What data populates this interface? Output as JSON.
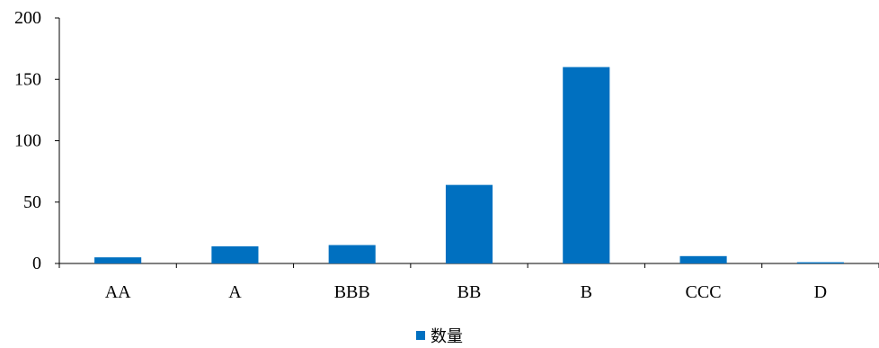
{
  "chart_data": {
    "type": "bar",
    "categories": [
      "AA",
      "A",
      "BBB",
      "BB",
      "B",
      "CCC",
      "D"
    ],
    "series": [
      {
        "name": "数量",
        "values": [
          5,
          14,
          15,
          64,
          160,
          6,
          1
        ],
        "color": "#0070c0"
      }
    ],
    "ylim": [
      0,
      200
    ],
    "yticks": [
      0,
      50,
      100,
      150,
      200
    ],
    "legend_position": "bottom-center",
    "grid": false
  }
}
